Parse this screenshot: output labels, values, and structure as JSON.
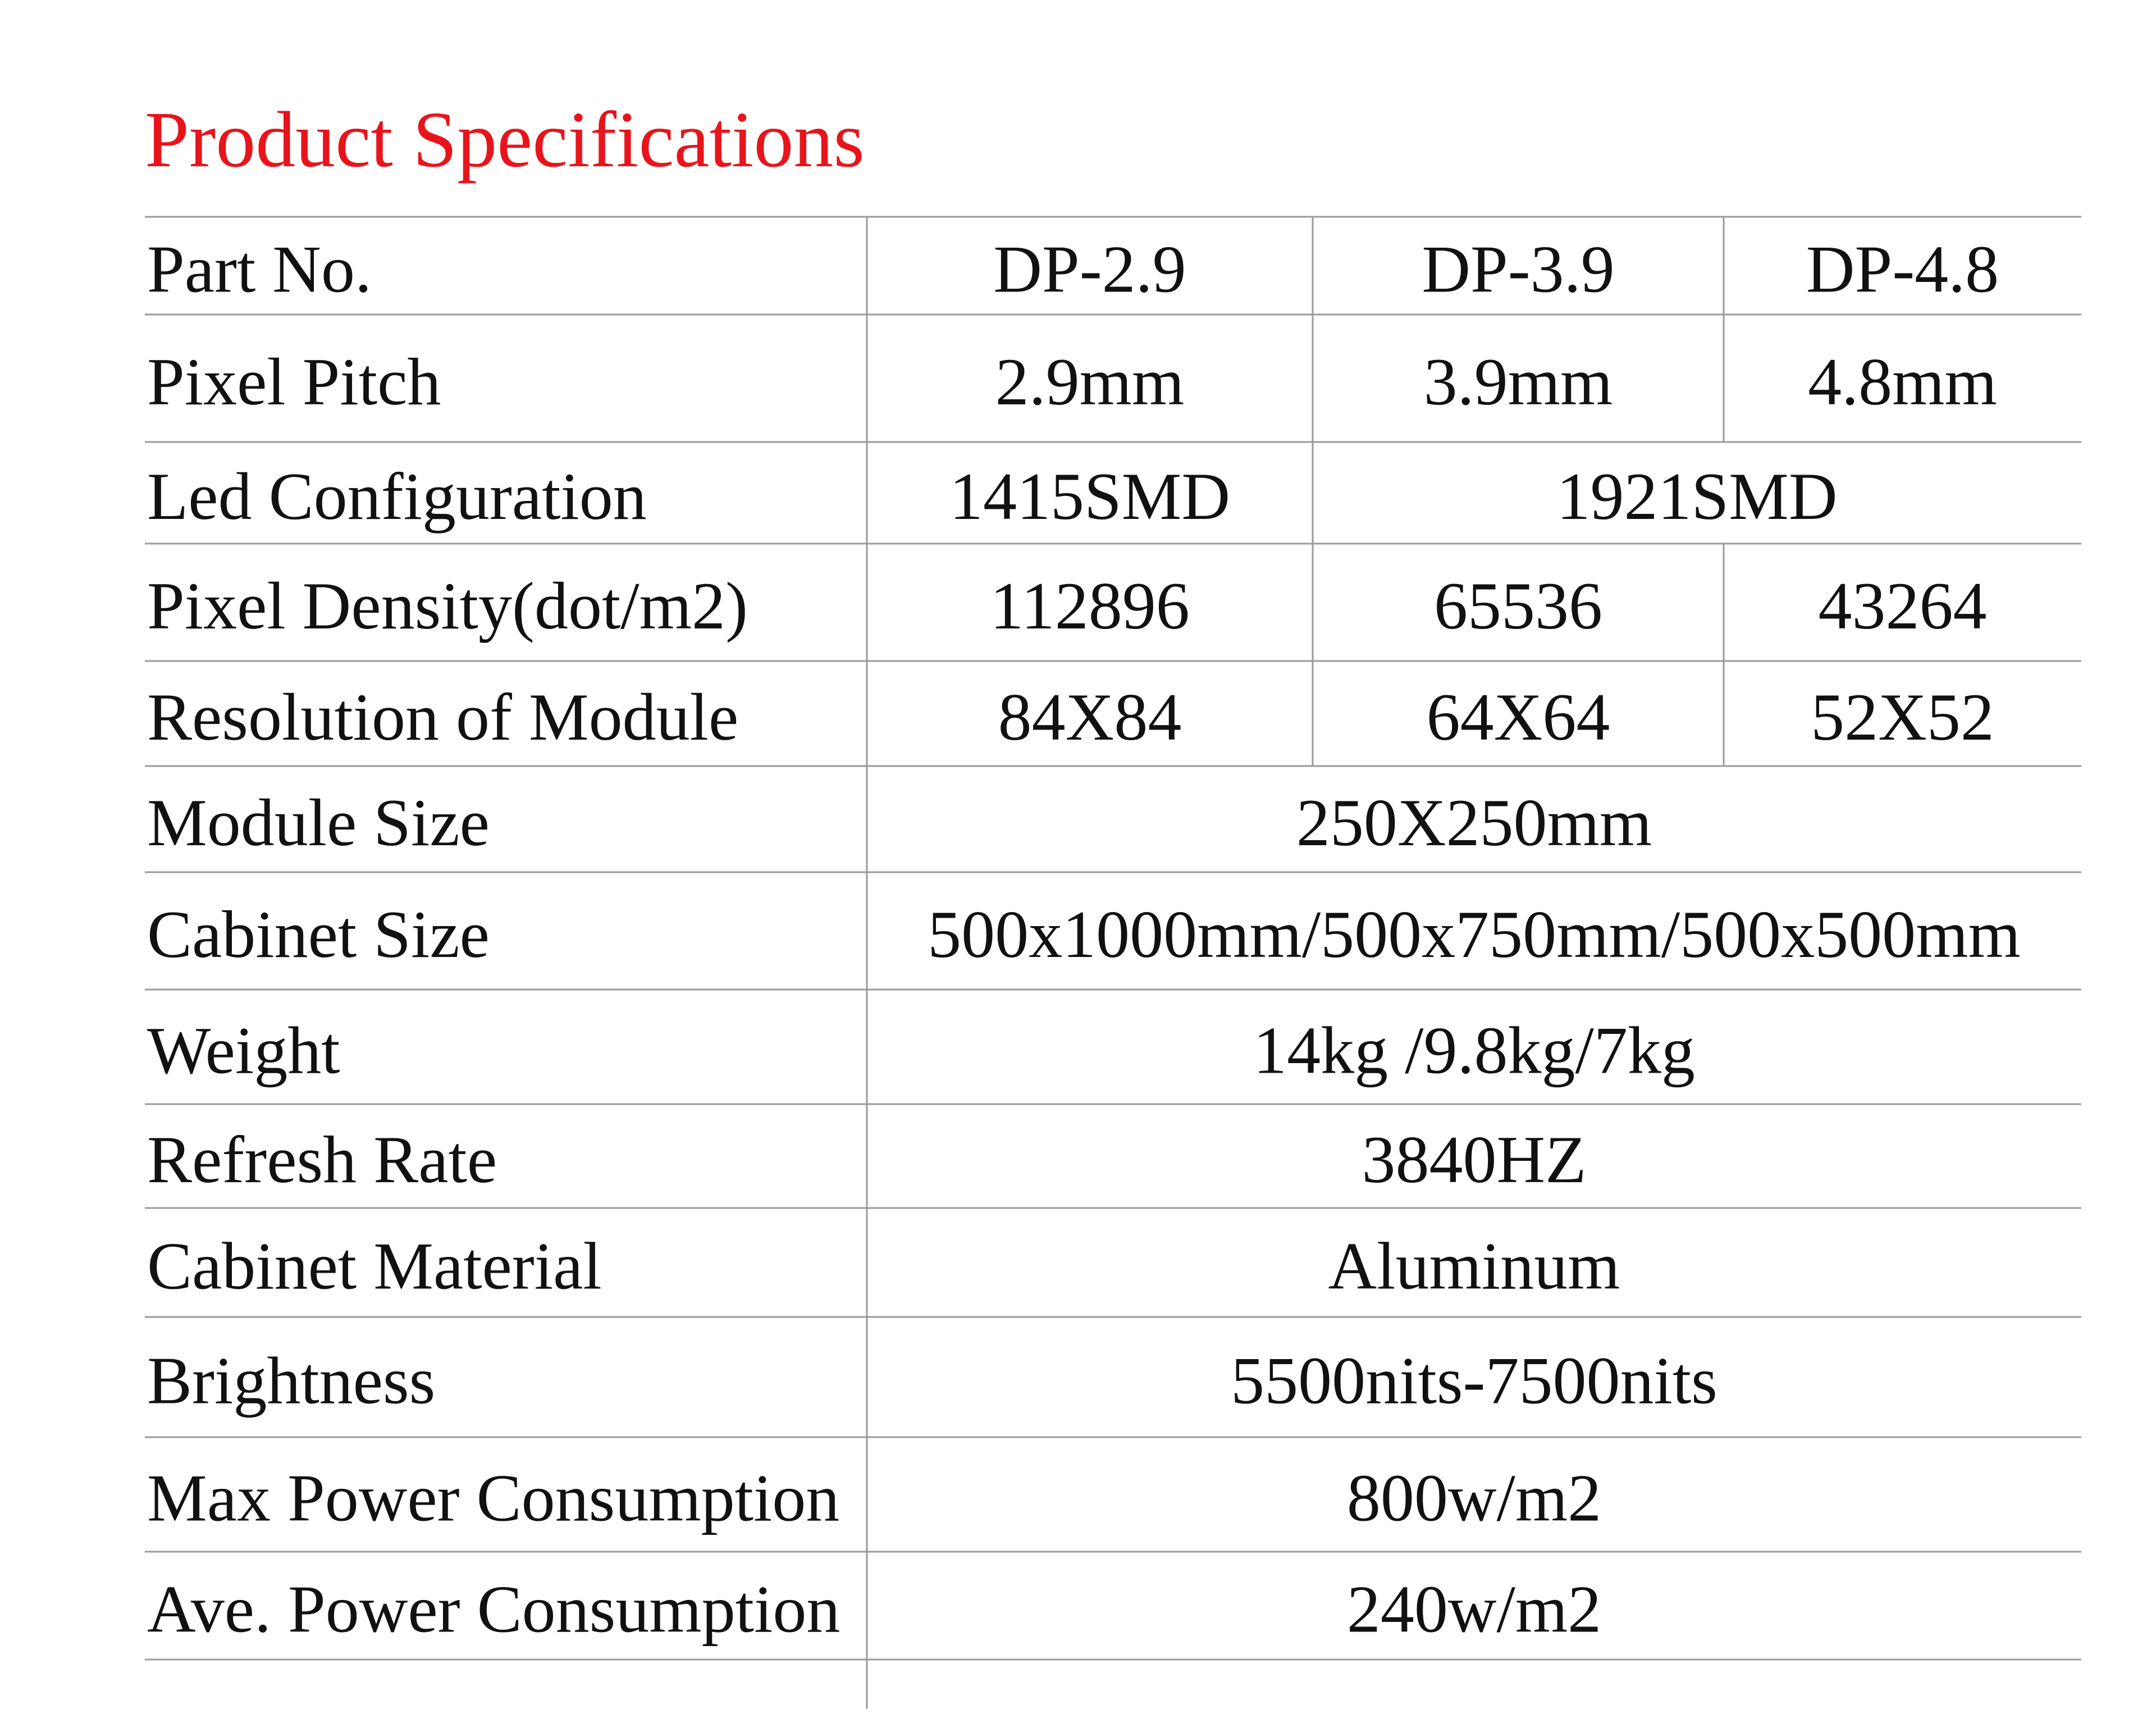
{
  "header": {
    "title": "Product Specifications"
  },
  "table": {
    "rows": [
      {
        "label": "Part No.",
        "cells": [
          "DP-2.9",
          "DP-3.9",
          "DP-4.8"
        ]
      },
      {
        "label": "Pixel Pitch",
        "cells": [
          "2.9mm",
          "3.9mm",
          "4.8mm"
        ]
      },
      {
        "label": "Led Configuration",
        "cells": [
          "1415SMD",
          "1921SMD"
        ]
      },
      {
        "label": "Pixel Density(dot/m2)",
        "cells": [
          "112896",
          "65536",
          "43264"
        ]
      },
      {
        "label": "Resolution of Module",
        "cells": [
          "84X84",
          "64X64",
          "52X52"
        ]
      },
      {
        "label": "Module Size",
        "cells": [
          "250X250mm"
        ]
      },
      {
        "label": "Cabinet Size",
        "cells": [
          "500x1000mm/500x750mm/500x500mm"
        ]
      },
      {
        "label": "Weight",
        "cells": [
          "14kg /9.8kg/7kg"
        ]
      },
      {
        "label": "Refresh Rate",
        "cells": [
          "3840HZ"
        ]
      },
      {
        "label": "Cabinet Material",
        "cells": [
          "Aluminum"
        ]
      },
      {
        "label": "Brightness",
        "cells": [
          "5500nits-7500nits"
        ]
      },
      {
        "label": "Max Power Consumption",
        "cells": [
          "800w/m2"
        ]
      },
      {
        "label": "Ave. Power Consumption",
        "cells": [
          "240w/m2"
        ]
      }
    ]
  }
}
